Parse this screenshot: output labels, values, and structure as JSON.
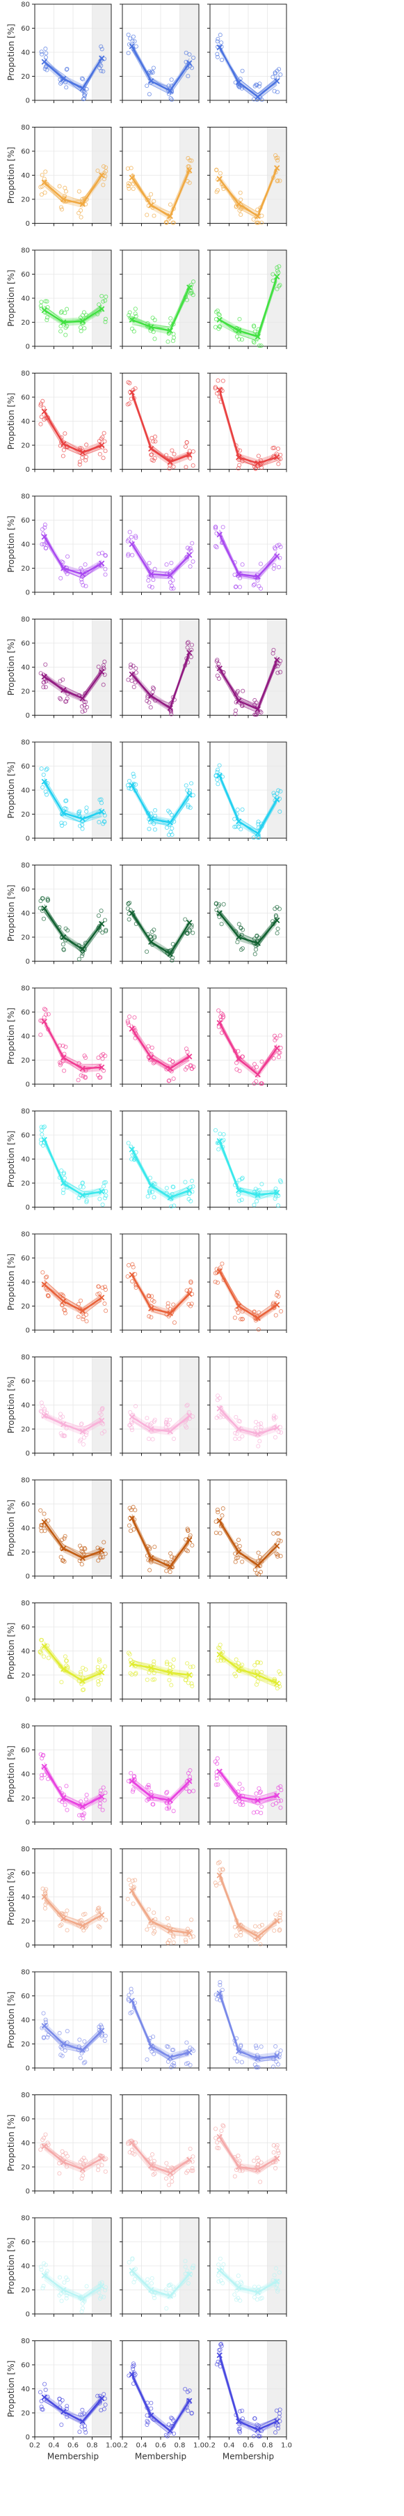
{
  "chart_data": {
    "type": "line",
    "ylabel": "Propotion [%]",
    "xlabel": "Membership",
    "xlim": [
      0.2,
      1.0
    ],
    "ylim": [
      0,
      80
    ],
    "xticks": [
      "0.2",
      "0.4",
      "0.6",
      "0.8",
      "1.0"
    ],
    "yticks": [
      "0",
      "20",
      "40",
      "60",
      "80"
    ],
    "grid": true,
    "x": [
      0.3,
      0.5,
      0.7,
      0.9
    ],
    "shaded_region": [
      0.8,
      1.0
    ],
    "rows": [
      {
        "color": "#4a72e0",
        "shaded": [
          true,
          true,
          false
        ],
        "panels": [
          [
            32,
            18,
            10,
            35
          ],
          [
            45,
            16,
            8,
            31
          ],
          [
            44,
            15,
            3,
            16
          ]
        ]
      },
      {
        "color": "#f0a840",
        "shaded": [
          true,
          true,
          true
        ],
        "panels": [
          [
            34,
            20,
            16,
            40
          ],
          [
            38,
            15,
            6,
            44
          ],
          [
            37,
            16,
            6,
            46
          ]
        ]
      },
      {
        "color": "#40e040",
        "shaded": [
          true,
          true,
          true
        ],
        "panels": [
          [
            30,
            20,
            21,
            31
          ],
          [
            22,
            16,
            13,
            49
          ],
          [
            22,
            13,
            8,
            58
          ]
        ]
      },
      {
        "color": "#e84040",
        "shaded": [
          false,
          false,
          false
        ],
        "panels": [
          [
            48,
            21,
            14,
            20
          ],
          [
            64,
            17,
            6,
            12
          ],
          [
            66,
            10,
            5,
            10
          ]
        ]
      },
      {
        "color": "#a848f0",
        "shaded": [
          false,
          false,
          false
        ],
        "panels": [
          [
            46,
            20,
            15,
            24
          ],
          [
            40,
            15,
            14,
            31
          ],
          [
            48,
            15,
            13,
            30
          ]
        ]
      },
      {
        "color": "#901880",
        "shaded": [
          true,
          true,
          true
        ],
        "panels": [
          [
            32,
            21,
            14,
            36
          ],
          [
            34,
            16,
            6,
            52
          ],
          [
            39,
            12,
            5,
            46
          ]
        ]
      },
      {
        "color": "#20d0f0",
        "shaded": [
          true,
          false,
          true
        ],
        "panels": [
          [
            47,
            21,
            16,
            22
          ],
          [
            44,
            16,
            13,
            36
          ],
          [
            52,
            14,
            4,
            32
          ]
        ]
      },
      {
        "color": "#106030",
        "shaded": [
          false,
          false,
          false
        ],
        "panels": [
          [
            44,
            20,
            10,
            31
          ],
          [
            40,
            16,
            6,
            32
          ],
          [
            40,
            20,
            15,
            34
          ]
        ]
      },
      {
        "color": "#f03890",
        "shaded": [
          false,
          false,
          false
        ],
        "panels": [
          [
            52,
            22,
            13,
            14
          ],
          [
            46,
            22,
            13,
            23
          ],
          [
            51,
            21,
            8,
            30
          ]
        ]
      },
      {
        "color": "#38e8ec",
        "shaded": [
          false,
          false,
          false
        ],
        "panels": [
          [
            56,
            20,
            10,
            13
          ],
          [
            48,
            18,
            8,
            14
          ],
          [
            55,
            14,
            10,
            12
          ]
        ]
      },
      {
        "color": "#e86038",
        "shaded": [
          false,
          false,
          false
        ],
        "panels": [
          [
            38,
            24,
            16,
            27
          ],
          [
            46,
            18,
            14,
            30
          ],
          [
            49,
            20,
            10,
            21
          ]
        ]
      },
      {
        "color": "#f8b0d8",
        "shaded": [
          true,
          true,
          false
        ],
        "panels": [
          [
            31,
            24,
            18,
            27
          ],
          [
            30,
            20,
            18,
            31
          ],
          [
            37,
            20,
            16,
            21
          ]
        ]
      },
      {
        "color": "#c05a10",
        "shaded": [
          true,
          false,
          false
        ],
        "panels": [
          [
            45,
            23,
            15,
            21
          ],
          [
            48,
            15,
            8,
            30
          ],
          [
            46,
            20,
            9,
            25
          ]
        ]
      },
      {
        "color": "#e0ec30",
        "shaded": [
          false,
          false,
          false
        ],
        "panels": [
          [
            44,
            25,
            15,
            22
          ],
          [
            29,
            26,
            22,
            20
          ],
          [
            37,
            25,
            20,
            13
          ]
        ]
      },
      {
        "color": "#e840e0",
        "shaded": [
          true,
          true,
          true
        ],
        "panels": [
          [
            46,
            20,
            13,
            21
          ],
          [
            34,
            21,
            18,
            34
          ],
          [
            42,
            21,
            18,
            22
          ]
        ]
      },
      {
        "color": "#f0a888",
        "shaded": [
          false,
          false,
          false
        ],
        "panels": [
          [
            40,
            22,
            16,
            25
          ],
          [
            45,
            20,
            12,
            10
          ],
          [
            58,
            16,
            7,
            20
          ]
        ]
      },
      {
        "color": "#7888e8",
        "shaded": [
          false,
          false,
          false
        ],
        "panels": [
          [
            35,
            20,
            15,
            31
          ],
          [
            56,
            18,
            9,
            13
          ],
          [
            62,
            14,
            8,
            10
          ]
        ]
      },
      {
        "color": "#f4a8a8",
        "shaded": [
          false,
          false,
          false
        ],
        "panels": [
          [
            37,
            24,
            18,
            27
          ],
          [
            40,
            21,
            15,
            26
          ],
          [
            45,
            20,
            18,
            27
          ]
        ]
      },
      {
        "color": "#b8f4f4",
        "shaded": [
          true,
          true,
          true
        ],
        "panels": [
          [
            32,
            20,
            13,
            23
          ],
          [
            36,
            20,
            15,
            33
          ],
          [
            36,
            22,
            18,
            27
          ]
        ]
      },
      {
        "color": "#4848e0",
        "shaded": [
          true,
          true,
          true
        ],
        "panels": [
          [
            33,
            21,
            13,
            32
          ],
          [
            52,
            18,
            5,
            30
          ],
          [
            68,
            13,
            6,
            13
          ]
        ]
      }
    ]
  }
}
